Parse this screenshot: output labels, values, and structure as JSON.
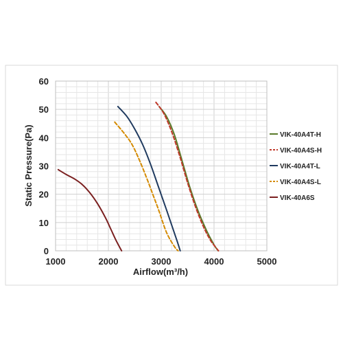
{
  "chart_data": {
    "type": "line",
    "xlabel": "Airflow(m³/h)",
    "ylabel": "Static Pressure(Pa)",
    "xlim": [
      1000,
      5000
    ],
    "ylim": [
      0,
      60
    ],
    "xticks": [
      "1000",
      "2000",
      "3000",
      "4000",
      "5000"
    ],
    "yticks": [
      "0",
      "10",
      "20",
      "30",
      "40",
      "50",
      "60"
    ],
    "grid": "on",
    "legend_position": "right",
    "series": [
      {
        "name": "VIK-40A4T-H",
        "color": "#5a7a2a",
        "dash": "solid",
        "x": [
          2960,
          3100,
          3250,
          3400,
          3550,
          3700,
          3850,
          3950,
          4020,
          4080
        ],
        "y": [
          51,
          47.5,
          41,
          31.5,
          22,
          14,
          7.5,
          3.8,
          1.5,
          0
        ]
      },
      {
        "name": "VIK-40A4S-H",
        "color": "#c0392b",
        "dash": "dashed",
        "x": [
          2900,
          3050,
          3200,
          3350,
          3500,
          3650,
          3800,
          3930,
          4020,
          4085
        ],
        "y": [
          52.5,
          48.5,
          42,
          33.5,
          24,
          15.5,
          8.5,
          3.8,
          1.5,
          0
        ]
      },
      {
        "name": "VIK-40A4T-L",
        "color": "#1f3a5f",
        "dash": "solid",
        "x": [
          2180,
          2350,
          2500,
          2650,
          2800,
          2950,
          3100,
          3200,
          3300,
          3360
        ],
        "y": [
          51,
          47.5,
          43,
          37.5,
          30.5,
          22.5,
          14.5,
          9,
          3.5,
          0
        ]
      },
      {
        "name": "VIK-40A4S-L",
        "color": "#d48a00",
        "dash": "dashed",
        "x": [
          2120,
          2300,
          2450,
          2600,
          2750,
          2850,
          2950,
          3100,
          3250,
          3320
        ],
        "y": [
          45.5,
          41.5,
          37.5,
          31.5,
          24.5,
          19.5,
          14.5,
          6.5,
          1.5,
          0
        ]
      },
      {
        "name": "VIK-40A6S",
        "color": "#7a1f1f",
        "dash": "solid",
        "x": [
          1050,
          1200,
          1350,
          1500,
          1650,
          1800,
          1950,
          2050,
          2150,
          2250
        ],
        "y": [
          28.7,
          27,
          25.5,
          23.5,
          20.5,
          16.5,
          11.5,
          7.5,
          3.5,
          0
        ]
      }
    ]
  }
}
